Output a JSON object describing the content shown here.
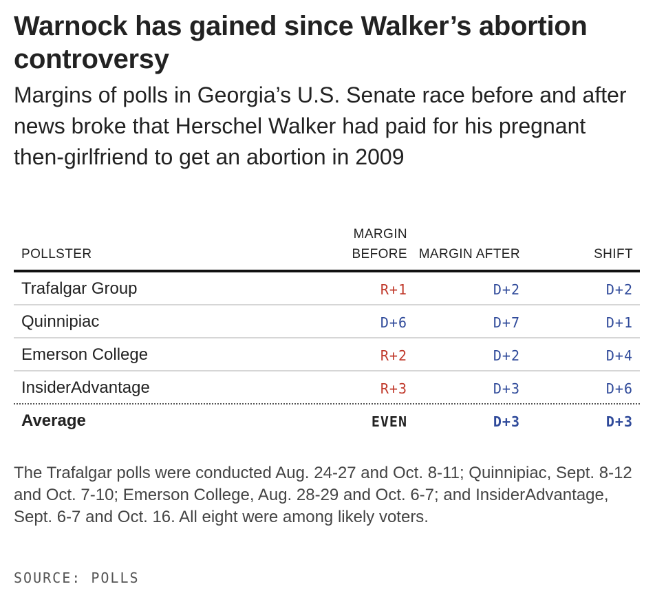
{
  "title": "Warnock has gained since Walker’s abortion controversy",
  "subtitle": "Margins of polls in Georgia’s U.S. Senate race before and after news broke that Herschel Walker had paid for his pregnant then-girlfriend to get an abortion in 2009",
  "colors": {
    "rep": "#c0392b",
    "dem": "#2f4a9a",
    "neutral": "#222222"
  },
  "chart_data": {
    "type": "table",
    "columns": [
      "POLLSTER",
      "MARGIN BEFORE",
      "MARGIN AFTER",
      "SHIFT"
    ],
    "rows": [
      {
        "pollster": "Trafalgar Group",
        "before": "R+1",
        "after": "D+2",
        "shift": "D+2"
      },
      {
        "pollster": "Quinnipiac",
        "before": "D+6",
        "after": "D+7",
        "shift": "D+1"
      },
      {
        "pollster": "Emerson College",
        "before": "R+2",
        "after": "D+2",
        "shift": "D+4"
      },
      {
        "pollster": "InsiderAdvantage",
        "before": "R+3",
        "after": "D+3",
        "shift": "D+6"
      }
    ],
    "average": {
      "pollster": "Average",
      "before": "EVEN",
      "after": "D+3",
      "shift": "D+3"
    }
  },
  "note": "The Trafalgar polls were conducted Aug. 24-27 and Oct. 8-11; Quinnipiac, Sept. 8-12 and Oct. 7-10; Emerson College, Aug. 28-29 and Oct. 6-7; and InsiderAdvantage, Sept. 6-7 and Oct. 16. All eight were among likely voters.",
  "source": "SOURCE: POLLS"
}
